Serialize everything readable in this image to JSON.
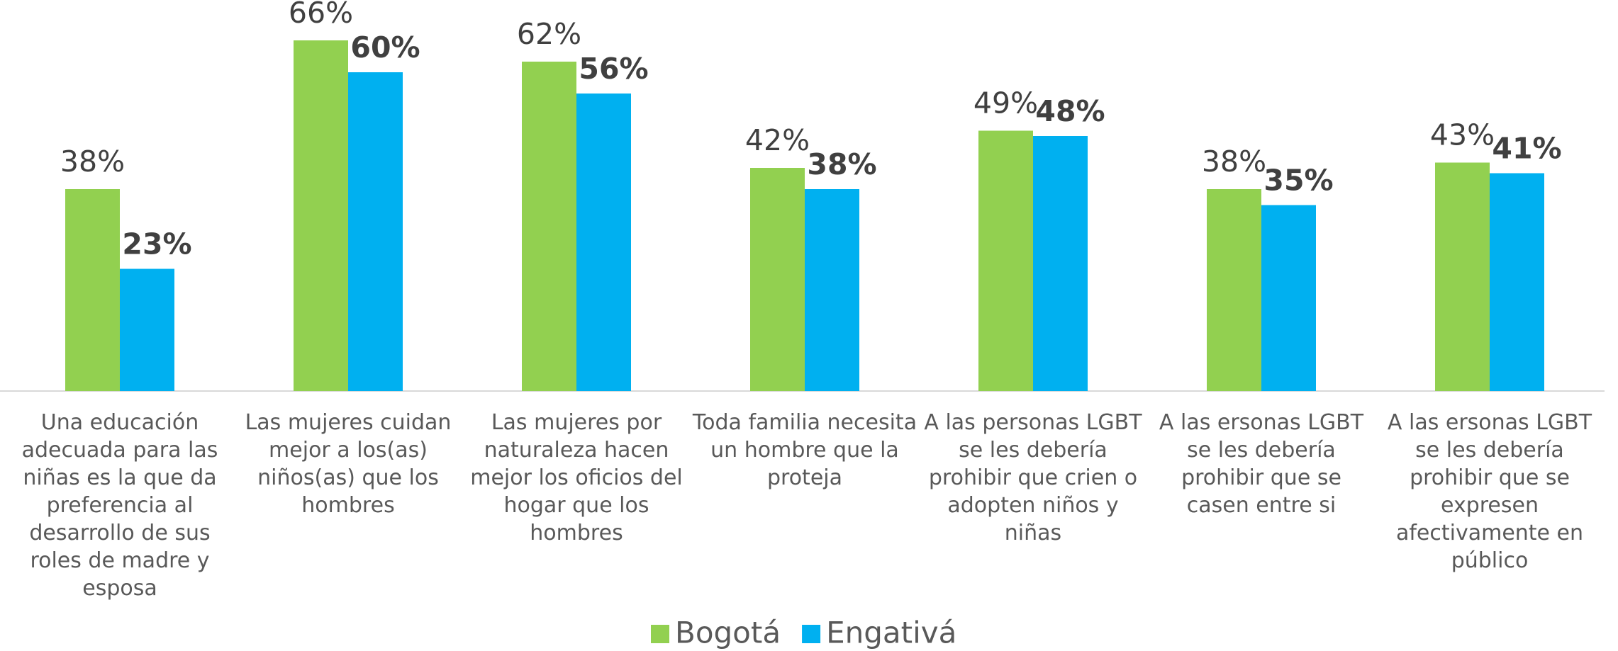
{
  "chart_data": {
    "type": "bar",
    "categories": [
      "Una educación adecuada para las niñas es la que da preferencia al desarrollo de sus roles de madre y esposa",
      "Las mujeres cuidan mejor a los(as) niños(as) que los hombres",
      "Las mujeres por naturaleza hacen mejor los oficios del hogar que los hombres",
      "Toda familia necesita un hombre que la proteja",
      "A las personas LGBT se les debería prohibir que crien o adopten niños y niñas",
      "A las ersonas LGBT se les debería prohibir que se casen entre si",
      "A las ersonas LGBT se les debería prohibir que se expresen afectivamente en público"
    ],
    "series": [
      {
        "name": "Bogotá",
        "color": "#92d050",
        "values": [
          38,
          66,
          62,
          42,
          49,
          38,
          43
        ],
        "value_labels": [
          "38%",
          "66%",
          "62%",
          "42%",
          "49%",
          "38%",
          "43%"
        ]
      },
      {
        "name": "Engativá",
        "color": "#00b0f0",
        "values": [
          23,
          60,
          56,
          38,
          48,
          35,
          41
        ],
        "value_labels": [
          "23%",
          "60%",
          "56%",
          "38%",
          "48%",
          "35%",
          "41%"
        ]
      }
    ],
    "legend": "bottom"
  }
}
